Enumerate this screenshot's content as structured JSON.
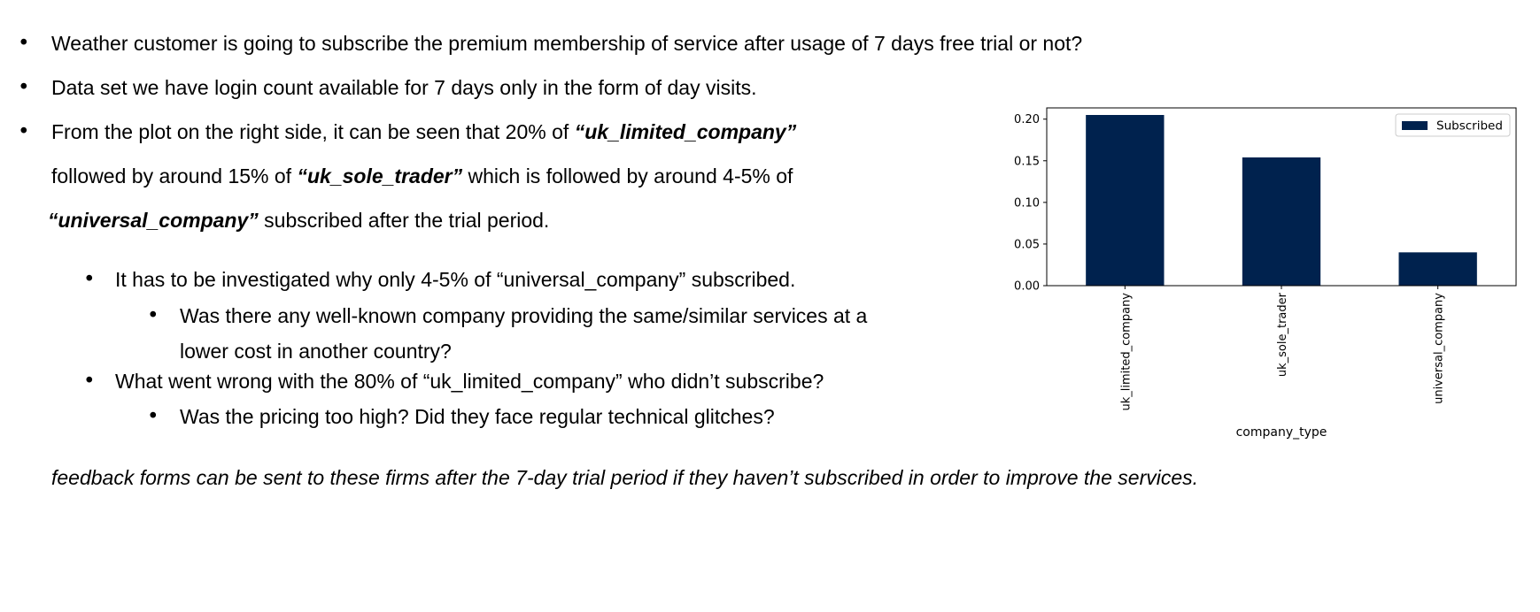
{
  "bullets": {
    "b1": "Weather customer is going to subscribe the premium membership of service after usage of 7 days free trial or not?",
    "b2": "Data set we have login count available for 7 days only in the form of day visits.",
    "b3": {
      "line1_pre": "From the plot on the right side, it can be seen that 20% of ",
      "line1_em": "“uk_limited_company”",
      "line2_pre": "followed by around 15% of  ",
      "line2_em": "“uk_sole_trader”",
      "line2_post": " which is followed by around 4-5% of",
      "line3_em": "“universal_company”",
      "line3_post": " subscribed after the trial period."
    },
    "sub1": "It has to be investigated why only 4-5% of “universal_company” subscribed.",
    "sub1a_line1": "Was there any well-known company providing the same/similar services at a",
    "sub1a_line2": "lower cost in another country?",
    "sub2": "What went wrong with the 80% of “uk_limited_company” who didn’t subscribe?",
    "sub2a": "Was the pricing too high? Did they face regular technical glitches?"
  },
  "conclusion": "feedback forms can be sent to these firms after the 7-day trial period if they haven’t subscribed in order to improve the services.",
  "chart_data": {
    "type": "bar",
    "categories": [
      "uk_limited_company",
      "uk_sole_trader",
      "universal_company"
    ],
    "series": [
      {
        "name": "Subscribed",
        "values": [
          0.205,
          0.154,
          0.04
        ]
      }
    ],
    "xlabel": "company_type",
    "ylabel": "",
    "ylim": [
      0,
      0.2135
    ],
    "yticks": [
      0.0,
      0.05,
      0.1,
      0.15,
      0.2
    ],
    "ytick_labels": [
      "0.00",
      "0.05",
      "0.10",
      "0.15",
      "0.20"
    ],
    "legend": "top-right",
    "color": "#00224e",
    "grid": false
  }
}
